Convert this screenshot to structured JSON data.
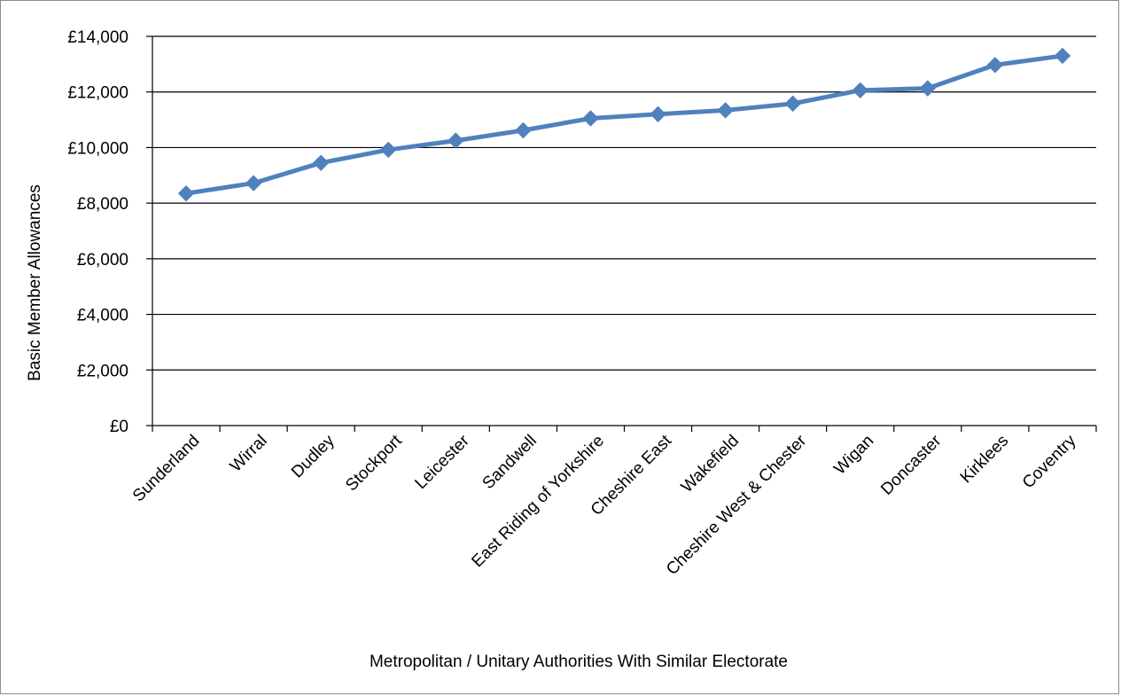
{
  "chart_data": {
    "type": "line",
    "title": "",
    "xlabel": "Metropolitan / Unitary Authorities  With Similar Electorate",
    "ylabel": "Basic Member Allowances",
    "ylim": [
      0,
      14000
    ],
    "y_ticks": [
      0,
      2000,
      4000,
      6000,
      8000,
      10000,
      12000,
      14000
    ],
    "y_tick_labels": [
      "£0",
      "£2,000",
      "£4,000",
      "£6,000",
      "£8,000",
      "£10,000",
      "£12,000",
      "£14,000"
    ],
    "grid": true,
    "legend": "none",
    "categories": [
      "Sunderland",
      "Wirral",
      "Dudley",
      "Stockport",
      "Leicester",
      "Sandwell",
      "East Riding of Yorkshire",
      "Cheshire East",
      "Wakefield",
      "Cheshire West & Chester",
      "Wigan",
      "Doncaster",
      "Kirklees",
      "Coventry"
    ],
    "series": [
      {
        "values": [
          8350,
          8720,
          9450,
          9920,
          10250,
          10620,
          11050,
          11200,
          11340,
          11580,
          12060,
          12130,
          12970,
          13300
        ],
        "color": "#4f81bd",
        "marker": "diamond"
      }
    ]
  }
}
